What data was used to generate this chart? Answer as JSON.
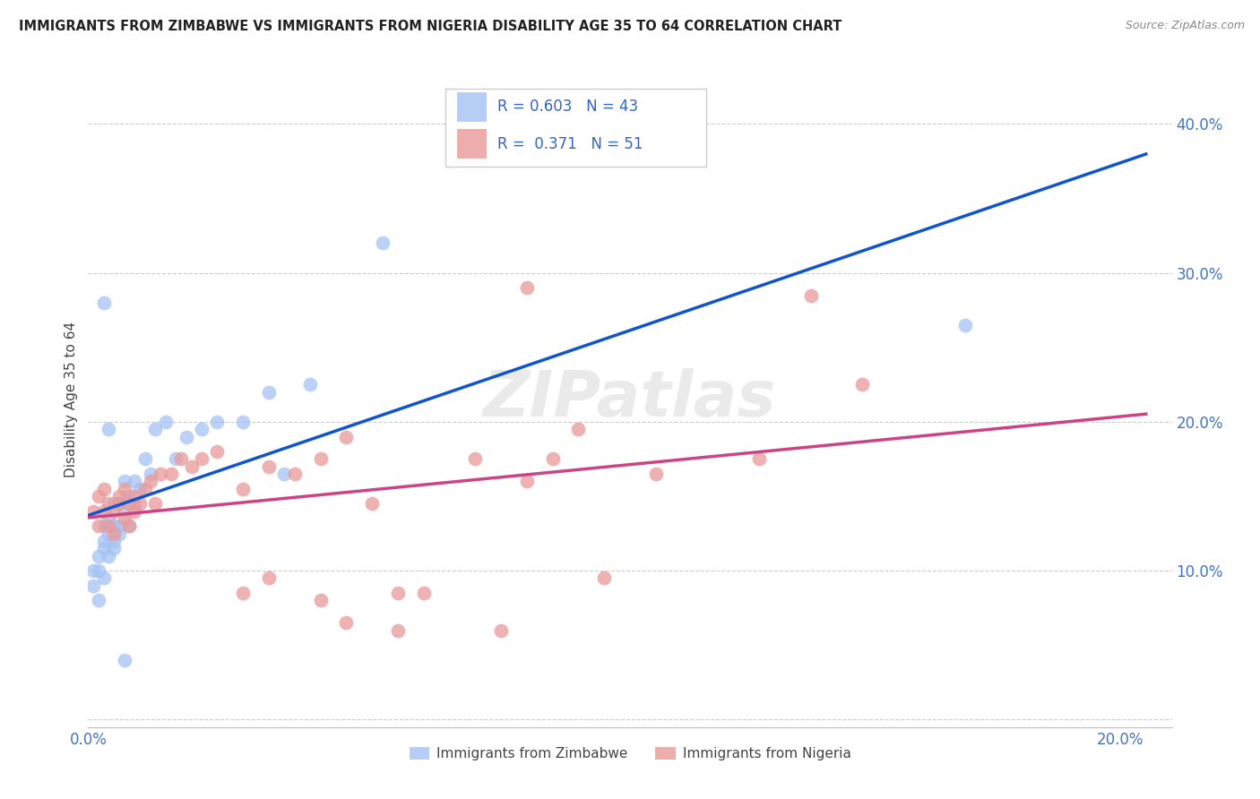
{
  "title": "IMMIGRANTS FROM ZIMBABWE VS IMMIGRANTS FROM NIGERIA DISABILITY AGE 35 TO 64 CORRELATION CHART",
  "source": "Source: ZipAtlas.com",
  "ylabel": "Disability Age 35 to 64",
  "xlim": [
    0.0,
    0.21
  ],
  "ylim": [
    -0.005,
    0.435
  ],
  "x_ticks": [
    0.0,
    0.05,
    0.1,
    0.15,
    0.2
  ],
  "x_tick_labels": [
    "0.0%",
    "",
    "",
    "",
    "20.0%"
  ],
  "y_ticks": [
    0.0,
    0.1,
    0.2,
    0.3,
    0.4
  ],
  "y_tick_labels": [
    "",
    "10.0%",
    "20.0%",
    "30.0%",
    "40.0%"
  ],
  "legend_label1": "Immigrants from Zimbabwe",
  "legend_label2": "Immigrants from Nigeria",
  "R1": 0.603,
  "N1": 43,
  "R2": 0.371,
  "N2": 51,
  "color1": "#a4c2f4",
  "color2": "#ea9999",
  "line_color1": "#1155cc",
  "line_color2": "#cc4488",
  "watermark": "ZIPatlas",
  "zimbabwe_x": [
    0.001,
    0.001,
    0.002,
    0.002,
    0.002,
    0.003,
    0.003,
    0.003,
    0.003,
    0.004,
    0.004,
    0.004,
    0.005,
    0.005,
    0.005,
    0.005,
    0.006,
    0.006,
    0.006,
    0.007,
    0.007,
    0.008,
    0.008,
    0.009,
    0.009,
    0.01,
    0.011,
    0.012,
    0.013,
    0.015,
    0.017,
    0.019,
    0.022,
    0.025,
    0.03,
    0.035,
    0.038,
    0.043,
    0.057,
    0.17,
    0.007,
    0.004,
    0.003
  ],
  "zimbabwe_y": [
    0.09,
    0.1,
    0.1,
    0.11,
    0.08,
    0.115,
    0.12,
    0.13,
    0.095,
    0.125,
    0.135,
    0.11,
    0.12,
    0.13,
    0.115,
    0.145,
    0.13,
    0.145,
    0.125,
    0.14,
    0.16,
    0.15,
    0.13,
    0.145,
    0.16,
    0.155,
    0.175,
    0.165,
    0.195,
    0.2,
    0.175,
    0.19,
    0.195,
    0.2,
    0.2,
    0.22,
    0.165,
    0.225,
    0.32,
    0.265,
    0.04,
    0.195,
    0.28
  ],
  "nigeria_x": [
    0.001,
    0.002,
    0.002,
    0.003,
    0.003,
    0.004,
    0.004,
    0.005,
    0.005,
    0.006,
    0.006,
    0.007,
    0.007,
    0.008,
    0.008,
    0.009,
    0.009,
    0.01,
    0.011,
    0.012,
    0.013,
    0.014,
    0.016,
    0.018,
    0.02,
    0.022,
    0.025,
    0.03,
    0.035,
    0.04,
    0.045,
    0.05,
    0.055,
    0.06,
    0.065,
    0.075,
    0.08,
    0.085,
    0.09,
    0.1,
    0.11,
    0.13,
    0.14,
    0.15,
    0.03,
    0.035,
    0.045,
    0.05,
    0.06,
    0.085,
    0.095
  ],
  "nigeria_y": [
    0.14,
    0.13,
    0.15,
    0.14,
    0.155,
    0.13,
    0.145,
    0.14,
    0.125,
    0.145,
    0.15,
    0.135,
    0.155,
    0.145,
    0.13,
    0.15,
    0.14,
    0.145,
    0.155,
    0.16,
    0.145,
    0.165,
    0.165,
    0.175,
    0.17,
    0.175,
    0.18,
    0.155,
    0.17,
    0.165,
    0.175,
    0.19,
    0.145,
    0.085,
    0.085,
    0.175,
    0.06,
    0.29,
    0.175,
    0.095,
    0.165,
    0.175,
    0.285,
    0.225,
    0.085,
    0.095,
    0.08,
    0.065,
    0.06,
    0.16,
    0.195
  ]
}
